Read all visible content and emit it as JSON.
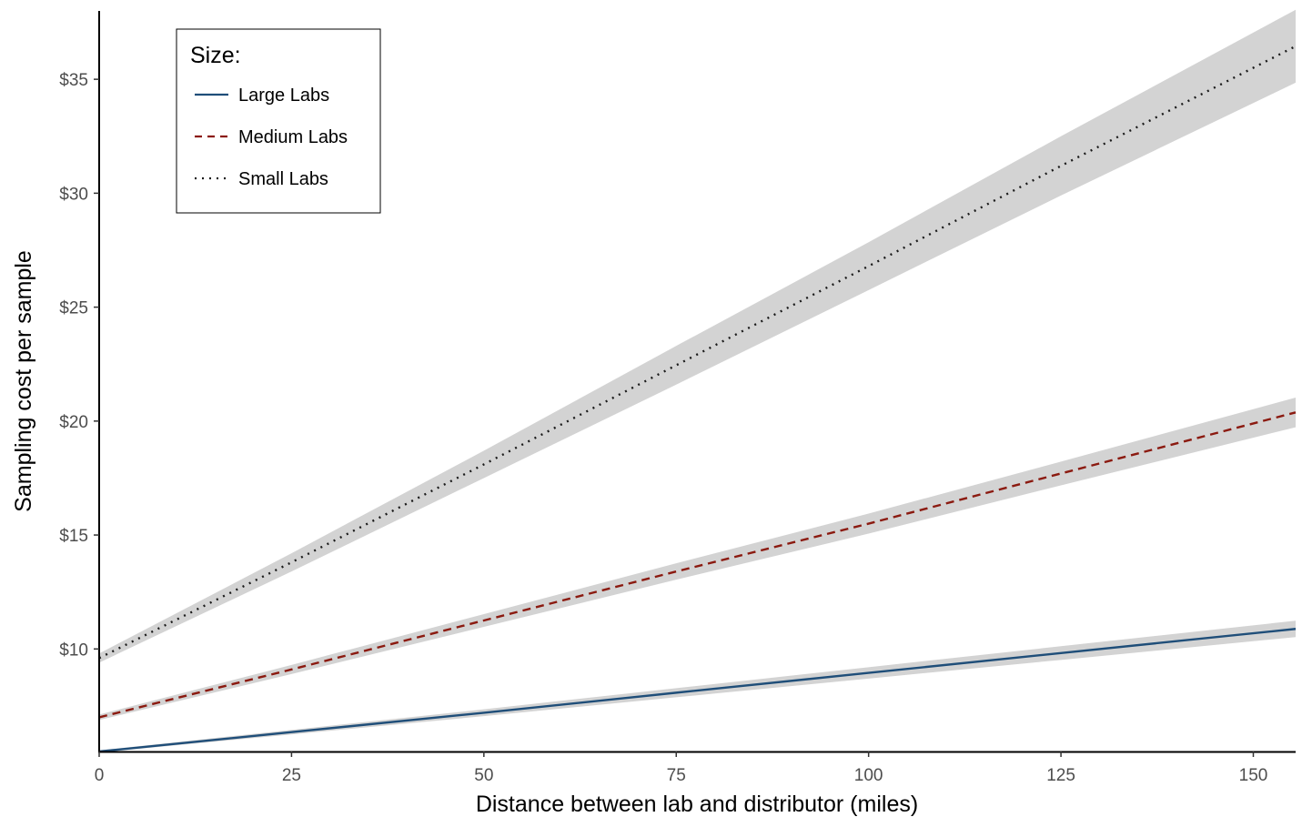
{
  "chart_data": {
    "type": "line",
    "xlabel": "Distance between lab and distributor (miles)",
    "ylabel": "Sampling cost per sample",
    "xlim": [
      0,
      155.5
    ],
    "ylim": [
      5.5,
      38
    ],
    "x_ticks": [
      0,
      25,
      50,
      75,
      100,
      125,
      150
    ],
    "x_tick_labels": [
      "0",
      "25",
      "50",
      "75",
      "100",
      "125",
      "150"
    ],
    "y_ticks": [
      10,
      15,
      20,
      25,
      30,
      35
    ],
    "y_tick_labels": [
      "$10",
      "$15",
      "$20",
      "$25",
      "$30",
      "$35"
    ],
    "grid": false,
    "legend": {
      "title": "Size:",
      "position": "top-left",
      "entries": [
        "Large Labs",
        "Medium Labs",
        "Small Labs"
      ]
    },
    "band_color": "#d3d3d3",
    "series": [
      {
        "name": "Large Labs",
        "color": "#1f4e79",
        "linestyle": "solid",
        "x": [
          0,
          25,
          50,
          75,
          100,
          125,
          155.5
        ],
        "y": [
          5.5,
          6.35,
          7.2,
          8.08,
          8.95,
          9.82,
          10.88
        ],
        "band_halfwidth": [
          0.05,
          0.1,
          0.15,
          0.2,
          0.25,
          0.3,
          0.36
        ]
      },
      {
        "name": "Medium Labs",
        "color": "#8b1a10",
        "linestyle": "dashed",
        "x": [
          0,
          25,
          50,
          75,
          100,
          125,
          155.5
        ],
        "y": [
          7.0,
          9.1,
          11.25,
          13.4,
          15.5,
          17.7,
          20.38
        ],
        "band_halfwidth": [
          0.12,
          0.2,
          0.28,
          0.36,
          0.44,
          0.52,
          0.65
        ]
      },
      {
        "name": "Small Labs",
        "color": "#1a1a1a",
        "linestyle": "dotted",
        "x": [
          0,
          25,
          50,
          75,
          100,
          125,
          155.5
        ],
        "y": [
          9.6,
          13.8,
          18.1,
          22.45,
          26.8,
          31.2,
          36.45
        ],
        "band_halfwidth": [
          0.2,
          0.4,
          0.6,
          0.85,
          1.05,
          1.3,
          1.6
        ]
      }
    ]
  }
}
